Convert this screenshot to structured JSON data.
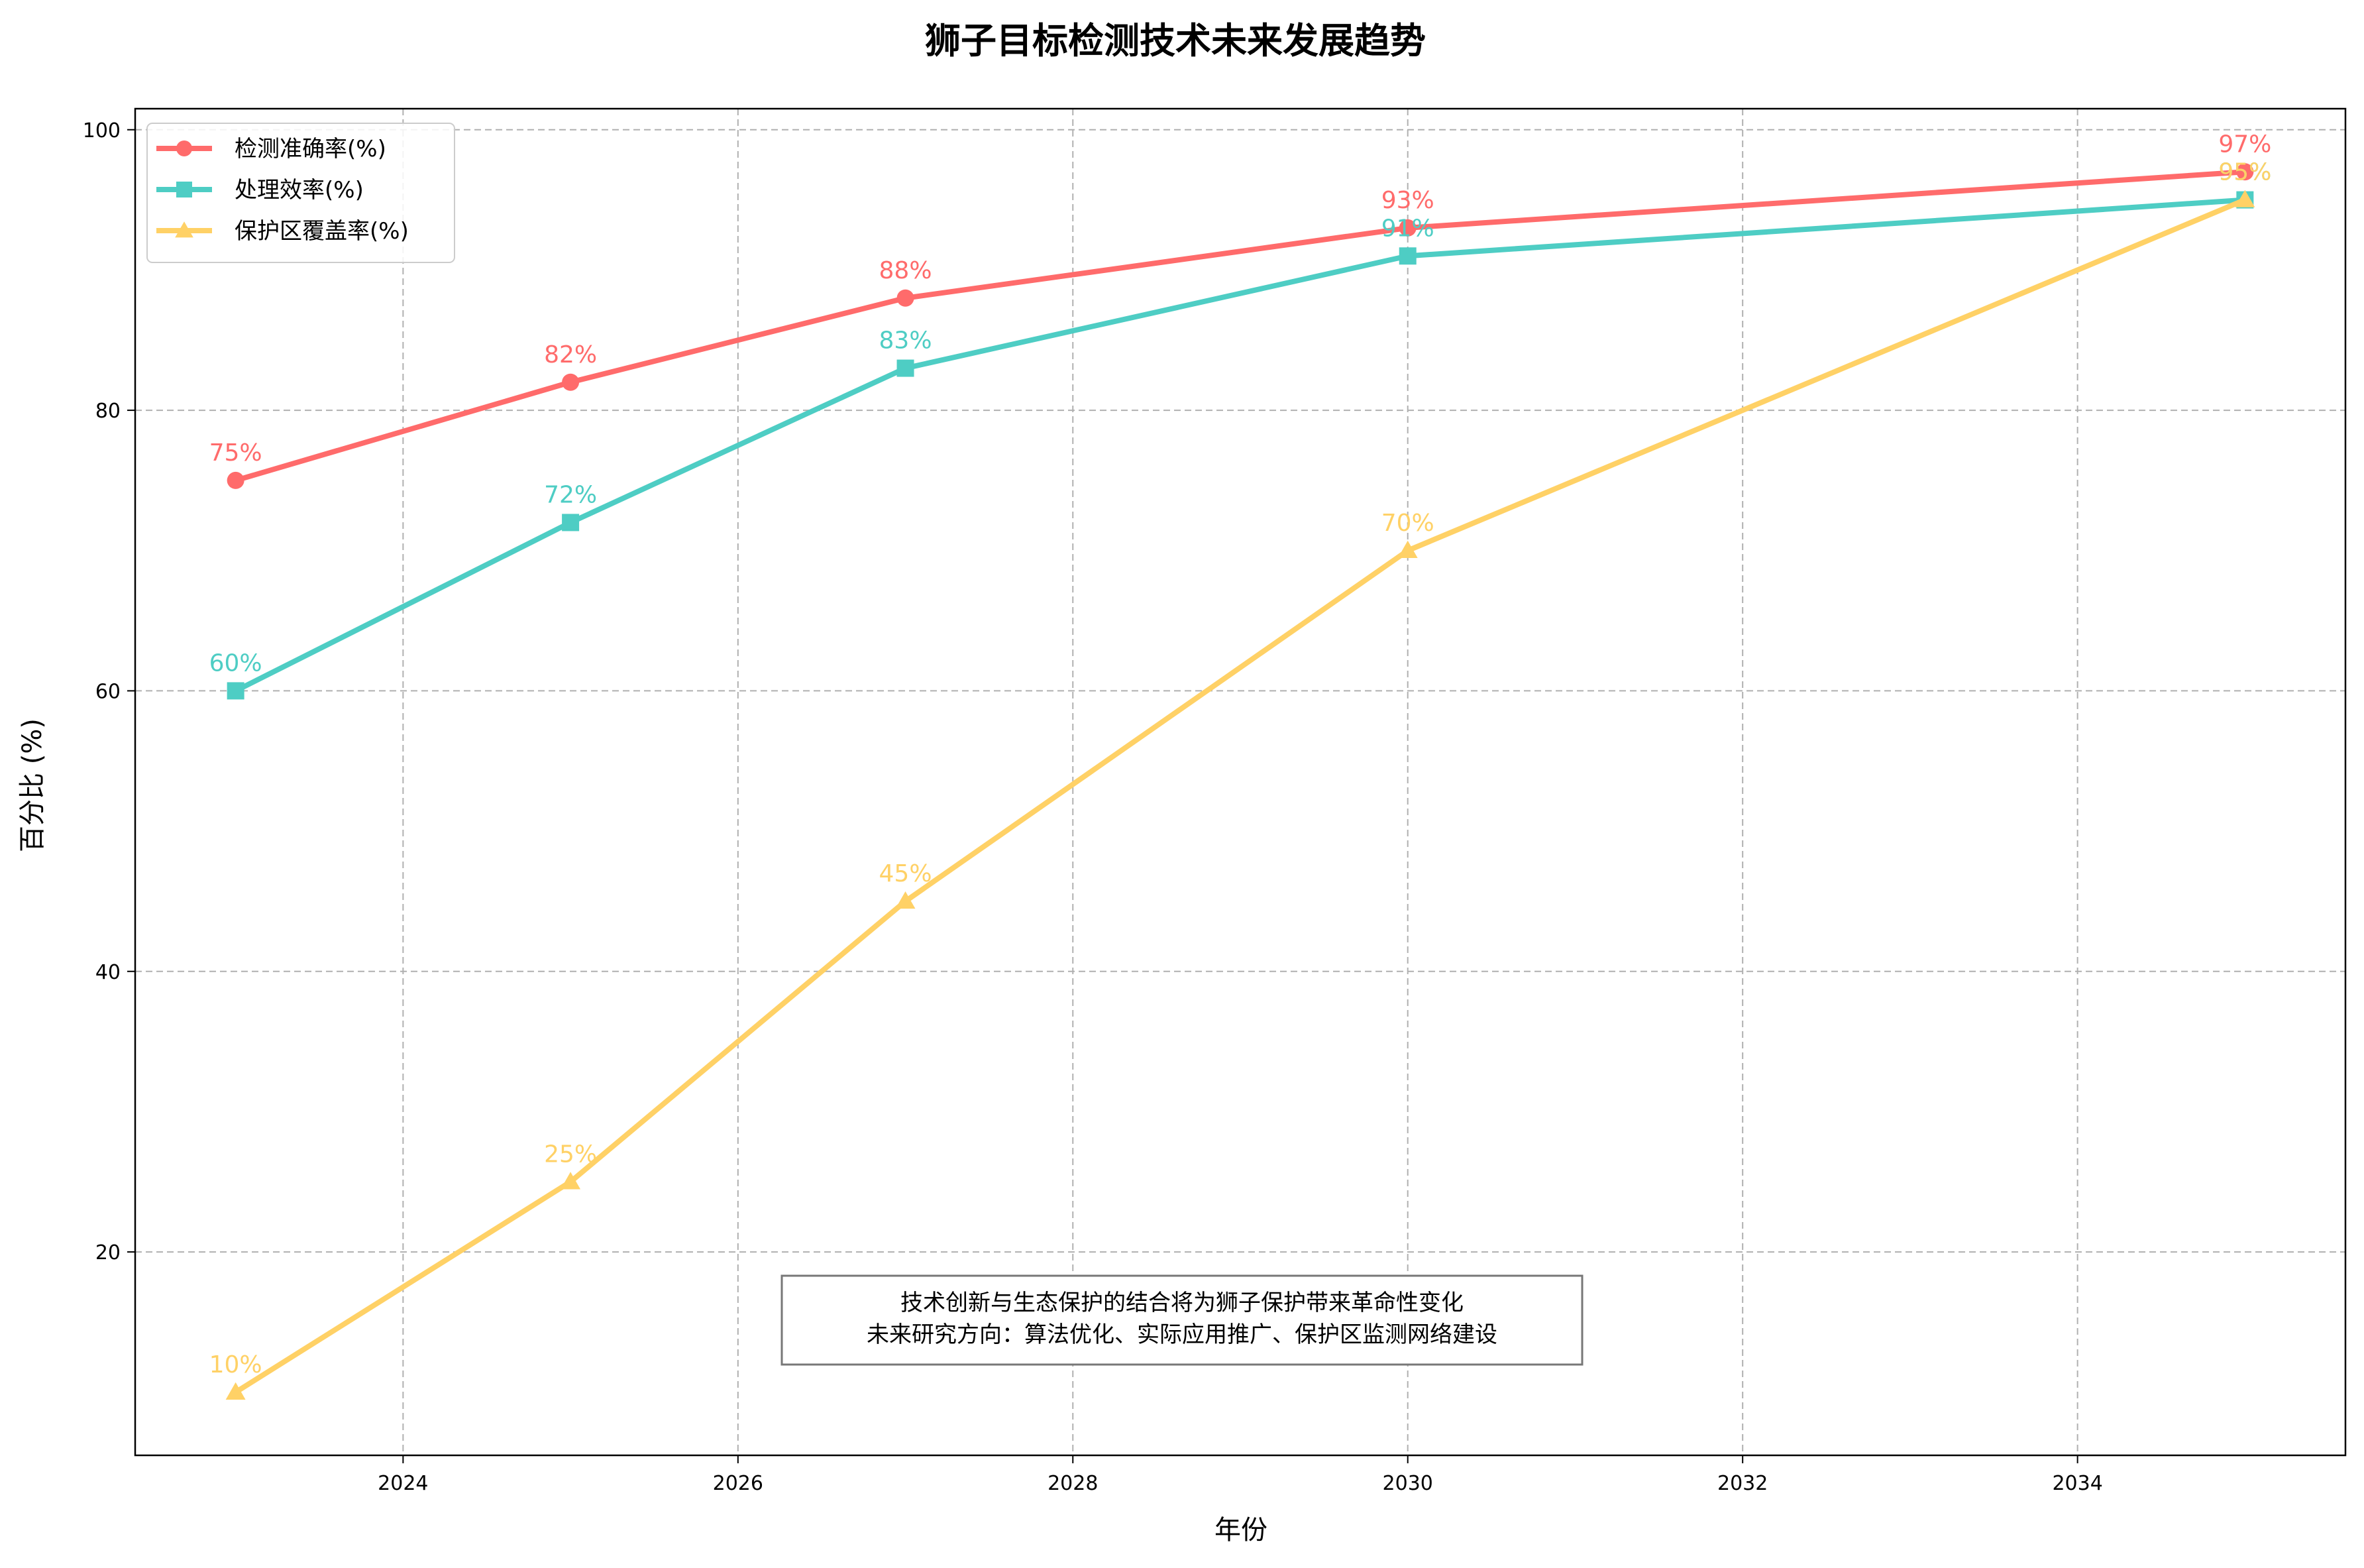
{
  "chart_data": {
    "type": "line",
    "title": "狮子目标检测技术未来发展趋势",
    "xlabel": "年份",
    "ylabel": "百分比 (%)",
    "x": [
      2023,
      2025,
      2027,
      2030,
      2035
    ],
    "xlim": [
      2022.4,
      2035.6
    ],
    "ylim": [
      5.5,
      101.5
    ],
    "xticks": [
      "2024",
      "2026",
      "2028",
      "2030",
      "2032",
      "2034"
    ],
    "yticks": [
      "20",
      "40",
      "60",
      "80",
      "100"
    ],
    "grid": true,
    "legend_position": "top-left",
    "series": [
      {
        "name": "检测准确率(%)",
        "values": [
          75,
          82,
          88,
          93,
          97
        ],
        "color": "#ff6b6b",
        "marker": "circle",
        "labels": [
          "75%",
          "82%",
          "88%",
          "93%",
          "97%"
        ]
      },
      {
        "name": "处理效率(%)",
        "values": [
          60,
          72,
          83,
          91,
          95
        ],
        "color": "#4ecdc4",
        "marker": "square",
        "labels": [
          "60%",
          "72%",
          "83%",
          "91%",
          "95%"
        ]
      },
      {
        "name": "保护区覆盖率(%)",
        "values": [
          10,
          25,
          45,
          70,
          95
        ],
        "color": "#ffd166",
        "marker": "triangle",
        "labels": [
          "10%",
          "25%",
          "45%",
          "70%",
          "95%"
        ]
      }
    ],
    "annotation": {
      "lines": [
        "技术创新与生态保护的结合将为狮子保护带来革命性变化",
        "未来研究方向：算法优化、实际应用推广、保护区监测网络建设"
      ]
    }
  }
}
